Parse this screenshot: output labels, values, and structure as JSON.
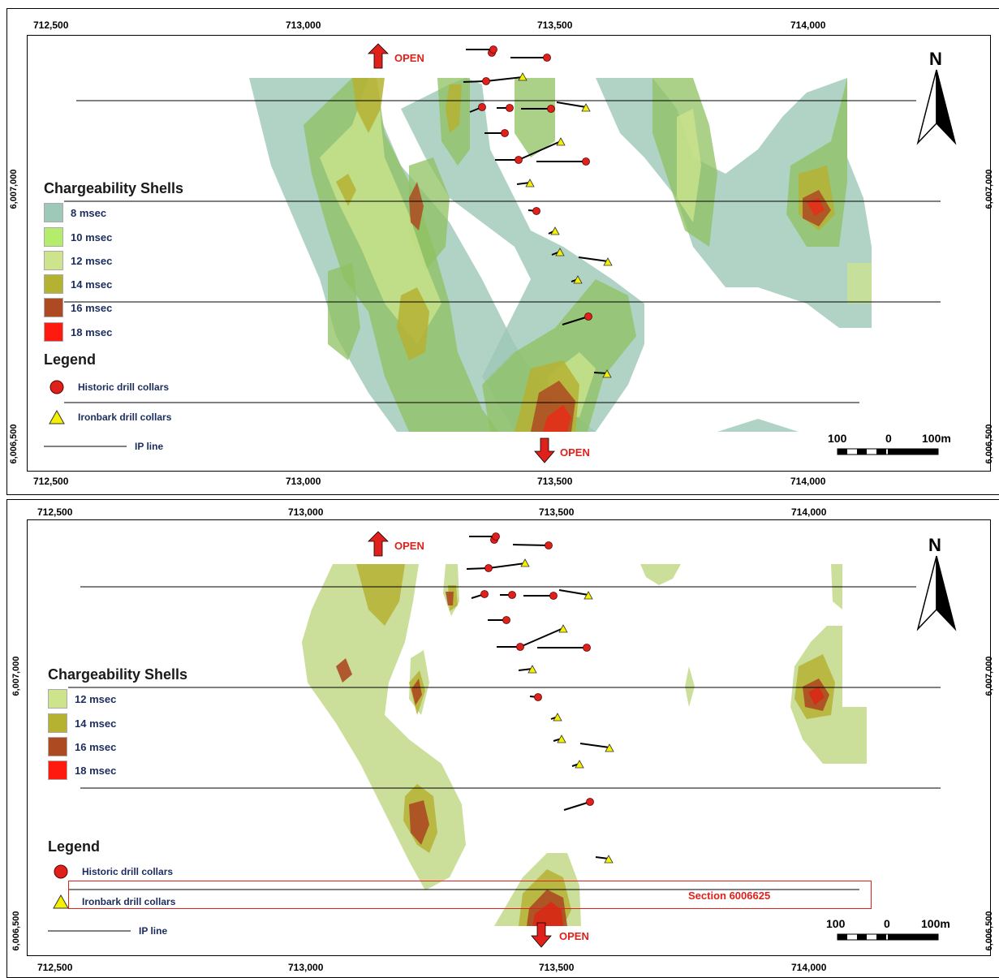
{
  "axes": {
    "x_ticks": [
      "712,500",
      "713,000",
      "713,500",
      "714,000"
    ],
    "y_ticks": [
      "6,007,000",
      "6,006,500"
    ]
  },
  "direction_labels": {
    "north": "OPEN",
    "south": "OPEN"
  },
  "north_arrow": {
    "label": "N"
  },
  "scale_bar": {
    "left": "100",
    "mid": "0",
    "right": "100m"
  },
  "panels": [
    {
      "id": "top",
      "legend": {
        "shells_title": "Chargeability Shells",
        "shells": [
          {
            "label": "8 msec",
            "color": "#9ec8b8"
          },
          {
            "label": "10 msec",
            "color": "#b4ec6c"
          },
          {
            "label": "12 msec",
            "color": "#cde48c"
          },
          {
            "label": "14 msec",
            "color": "#b5b232"
          },
          {
            "label": "16 msec",
            "color": "#ad4a22"
          },
          {
            "label": "18 msec",
            "color": "#ff1a10"
          }
        ],
        "title": "Legend",
        "historic": "Historic drill collars",
        "ironbark": "Ironbark drill collars",
        "ip_line": "IP line"
      }
    },
    {
      "id": "bottom",
      "legend": {
        "shells_title": "Chargeability Shells",
        "shells": [
          {
            "label": "12 msec",
            "color": "#cde48c"
          },
          {
            "label": "14 msec",
            "color": "#b5b232"
          },
          {
            "label": "16 msec",
            "color": "#ad4a22"
          },
          {
            "label": "18 msec",
            "color": "#ff1a10"
          }
        ],
        "title": "Legend",
        "historic": "Historic drill collars",
        "ironbark": "Ironbark drill collars",
        "ip_line": "IP line"
      },
      "section_label": "Section 6006625"
    }
  ],
  "colors": {
    "historic_collar": "#e0211b",
    "ironbark_collar": "#f5f000",
    "open_arrow": "#e0211b"
  }
}
